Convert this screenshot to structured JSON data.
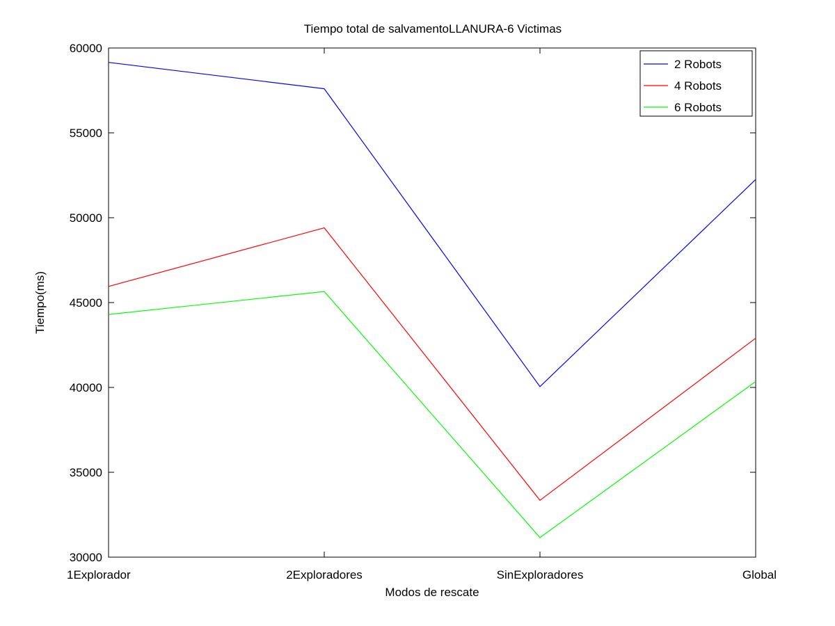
{
  "chart_data": {
    "type": "line",
    "title": "Tiempo total de salvamentoLLANURA-6 Victimas",
    "xlabel": "Modos de rescate",
    "ylabel": "Tiempo(ms)",
    "categories": [
      "1Explorador",
      "2Exploradores",
      "SinExploradores",
      "Global"
    ],
    "ylim": [
      30000,
      60000
    ],
    "yticks": [
      30000,
      35000,
      40000,
      45000,
      50000,
      55000,
      60000
    ],
    "grid": false,
    "legend_position": "top-right",
    "series": [
      {
        "name": "2 Robots",
        "color": "#0000ff",
        "values": [
          59150,
          57600,
          40050,
          52250
        ]
      },
      {
        "name": "4 Robots",
        "color": "#ff0000",
        "values": [
          45950,
          49400,
          33350,
          42900
        ]
      },
      {
        "name": "6 Robots",
        "color": "#00ff00",
        "values": [
          44300,
          45650,
          31150,
          40350
        ]
      }
    ]
  }
}
